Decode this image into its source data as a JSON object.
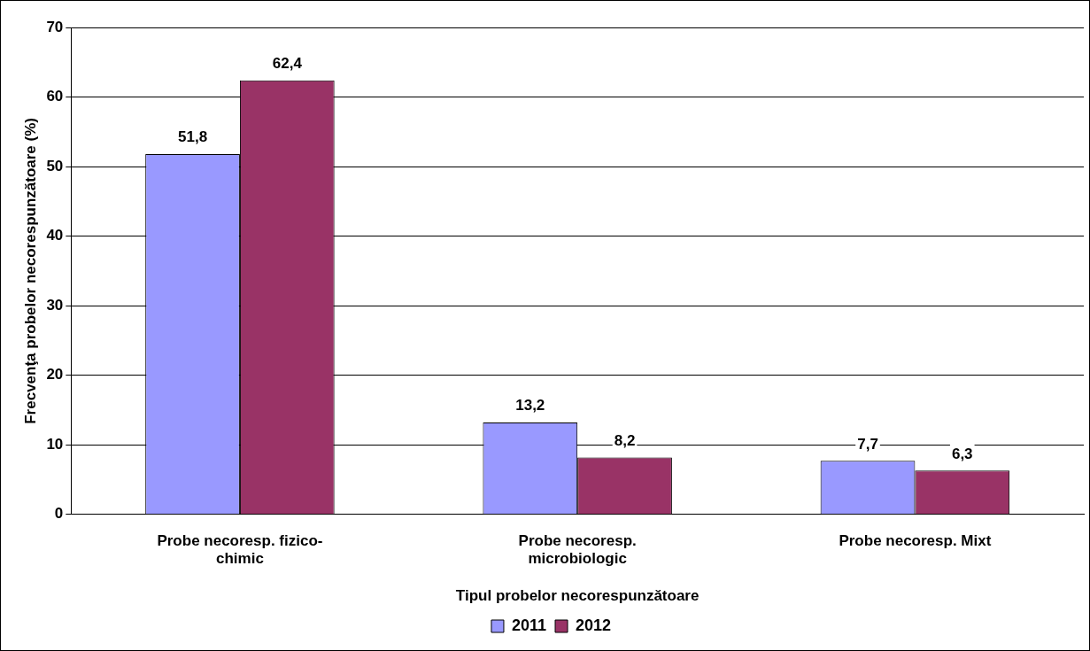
{
  "chart_data": {
    "type": "bar",
    "xlabel": "Tipul probelor necorespunzătoare",
    "ylabel": "Frecvenţa probelor necorespunzătoare (%)",
    "categories": [
      "Probe necoresp. fizico-chimic",
      "Probe necoresp. microbiologic",
      "Probe necoresp. Mixt"
    ],
    "series": [
      {
        "name": "2011",
        "color": "#9999ff",
        "values": [
          51.8,
          13.2,
          7.7
        ],
        "value_labels": [
          "51,8",
          "13,2",
          "7,7"
        ]
      },
      {
        "name": "2012",
        "color": "#993366",
        "values": [
          62.4,
          8.2,
          6.3
        ],
        "value_labels": [
          "62,4",
          "8,2",
          "6,3"
        ]
      }
    ],
    "ylim": [
      0,
      70
    ],
    "yticks": [
      0,
      10,
      20,
      30,
      40,
      50,
      60,
      70
    ],
    "grid": "y",
    "legend": "bottom"
  }
}
